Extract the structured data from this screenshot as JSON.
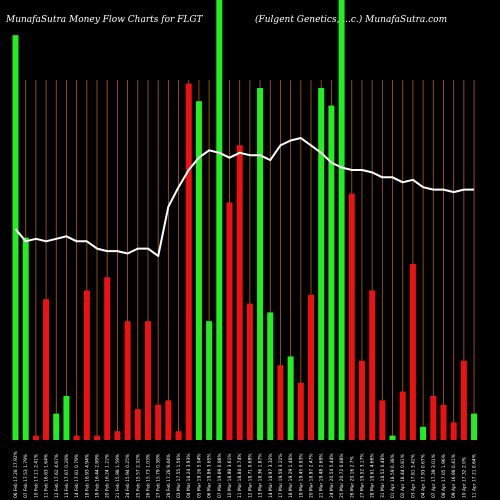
{
  "chart_data": {
    "type": "bar",
    "title_left": "MunafaSutra  Money Flow  Charts for FLGT",
    "title_right": "(Fulgent Genetics, ...c.) MunafaSutra.com",
    "categories": [
      "06 Feb 17.28 17.92%",
      "07 Feb 17.53 1.79%",
      "10 Feb 17.11 2.41%",
      "11 Feb 16.83 1.64%",
      "12 Feb 17.62 4.67%",
      "13 Feb 17.67 0.28%",
      "14 Feb 17.81 0.79%",
      "18 Feb 16.93 4.94%",
      "19 Feb 16.44 2.89%",
      "20 Feb 16.24 1.22%",
      "21 Feb 15.98 1.59%",
      "24 Feb 15.94 0.25%",
      "25 Feb 15.57 2.32%",
      "26 Feb 15.73 1.03%",
      "27 Feb 15.79 0.38%",
      "28 Feb 17.28 9.44%",
      "03 Mar 17.55 1.56%",
      "04 Mar 18.24 3.93%",
      "05 Mar 19.16 5.04%",
      "06 Mar 19.86 3.65%",
      "07 Mar 19.69 0.86%",
      "10 Mar 18.98 3.61%",
      "11 Mar 18.84 0.74%",
      "12 Mar 18.71 0.69%",
      "13 Mar 18.36 1.87%",
      "14 Mar 18.97 3.32%",
      "17 Mar 19.58 3.22%",
      "18 Mar 19.29 1.48%",
      "19 Mar 19.45 0.83%",
      "20 Mar 18.97 2.47%",
      "21 Mar 19.48 2.69%",
      "24 Mar 20.54 5.44%",
      "25 Mar 20.72 0.88%",
      "26 Mar 20.16 2.7%",
      "27 Mar 19.52 3.17%",
      "28 Mar 18.61 4.66%",
      "31 Mar 18.52 0.48%",
      "01 Apr 18.59 0.38%",
      "02 Apr 18.44 0.81%",
      "03 Apr 17.81 3.42%",
      "04 Apr 17.93 0.67%",
      "07 Apr 17.39 3.01%",
      "08 Apr 17.05 1.96%",
      "09 Apr 16.98 0.41%",
      "10 Apr 17.32 2.0%",
      "11 Apr 17.21 0.64%"
    ],
    "values": [
      92,
      46,
      1,
      32,
      6,
      10,
      1,
      34,
      1,
      37,
      2,
      27,
      7,
      27,
      8,
      9,
      2,
      81,
      77,
      27,
      100,
      54,
      67,
      31,
      80,
      29,
      17,
      19,
      13,
      33,
      80,
      76,
      100,
      56,
      18,
      34,
      9,
      1,
      11,
      40,
      3,
      10,
      8,
      4,
      18,
      6
    ],
    "bar_colors": [
      "green",
      "green",
      "red",
      "red",
      "green",
      "green",
      "red",
      "red",
      "red",
      "red",
      "red",
      "red",
      "red",
      "red",
      "red",
      "red",
      "red",
      "red",
      "green",
      "green",
      "green",
      "red",
      "red",
      "red",
      "green",
      "green",
      "red",
      "green",
      "red",
      "red",
      "green",
      "green",
      "green",
      "red",
      "red",
      "red",
      "red",
      "green",
      "red",
      "red",
      "green",
      "red",
      "red",
      "red",
      "red",
      "green"
    ],
    "price_line": [
      56,
      51,
      52,
      51,
      52,
      53,
      51,
      51,
      48,
      47,
      47,
      46,
      48,
      48,
      45,
      65,
      73,
      80,
      85,
      88,
      87,
      85,
      87,
      86,
      86,
      84,
      90,
      92,
      93,
      90,
      87,
      83,
      81,
      80,
      80,
      79,
      77,
      77,
      75,
      76,
      73,
      72,
      72,
      71,
      72,
      72
    ],
    "colors": {
      "background": "#000000",
      "up": "#22ee22",
      "down": "#ee1111",
      "line": "#ffffff",
      "grid": "#b06010"
    },
    "grid": true
  }
}
